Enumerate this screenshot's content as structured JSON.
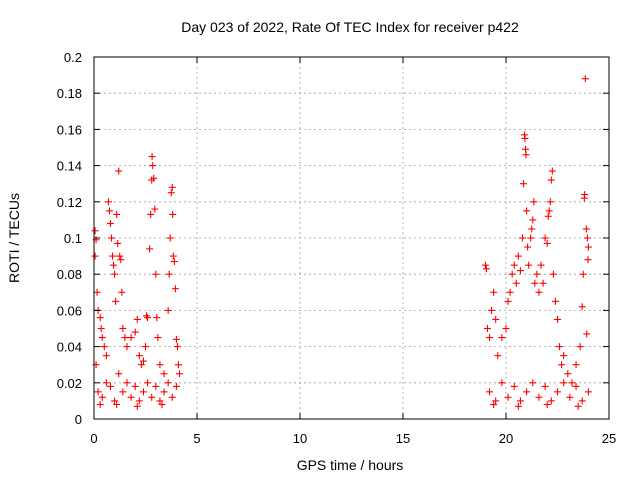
{
  "chart_data": {
    "type": "scatter",
    "title": "Day 023 of 2022, Rate Of TEC Index for receiver p422",
    "xlabel": "GPS time / hours",
    "ylabel": "ROTI / TECUs",
    "xlim": [
      0,
      25
    ],
    "ylim": [
      0,
      0.2
    ],
    "grid": true,
    "marker": "+",
    "color": "#ff0000",
    "x_ticks": [
      0,
      5,
      10,
      15,
      20,
      25
    ],
    "x_tick_labels": [
      "0",
      "5",
      "10",
      "15",
      "20",
      "25"
    ],
    "y_ticks": [
      0,
      0.02,
      0.04,
      0.06,
      0.08,
      0.1,
      0.12,
      0.14,
      0.16,
      0.18,
      0.2
    ],
    "y_tick_labels": [
      "0",
      "0.02",
      "0.04",
      "0.06",
      "0.08",
      "0.1",
      "0.12",
      "0.14",
      "0.16",
      "0.18",
      "0.2"
    ],
    "series": [
      {
        "points": [
          [
            0.05,
            0.104
          ],
          [
            0.1,
            0.099
          ],
          [
            0.05,
            0.09
          ],
          [
            0.15,
            0.07
          ],
          [
            0.2,
            0.06
          ],
          [
            0.3,
            0.056
          ],
          [
            0.35,
            0.05
          ],
          [
            0.1,
            0.03
          ],
          [
            0.4,
            0.045
          ],
          [
            0.5,
            0.04
          ],
          [
            0.6,
            0.035
          ],
          [
            0.7,
            0.12
          ],
          [
            0.75,
            0.115
          ],
          [
            0.8,
            0.108
          ],
          [
            0.85,
            0.1
          ],
          [
            0.9,
            0.09
          ],
          [
            0.95,
            0.085
          ],
          [
            1.0,
            0.08
          ],
          [
            1.05,
            0.065
          ],
          [
            1.1,
            0.113
          ],
          [
            1.15,
            0.097
          ],
          [
            1.2,
            0.137
          ],
          [
            1.25,
            0.09
          ],
          [
            1.3,
            0.088
          ],
          [
            1.35,
            0.07
          ],
          [
            1.4,
            0.05
          ],
          [
            1.5,
            0.045
          ],
          [
            1.6,
            0.04
          ],
          [
            1.8,
            0.045
          ],
          [
            2.0,
            0.048
          ],
          [
            2.1,
            0.055
          ],
          [
            2.2,
            0.035
          ],
          [
            2.3,
            0.03
          ],
          [
            2.4,
            0.032
          ],
          [
            2.5,
            0.04
          ],
          [
            2.55,
            0.057
          ],
          [
            2.6,
            0.056
          ],
          [
            2.7,
            0.094
          ],
          [
            2.75,
            0.113
          ],
          [
            2.8,
            0.132
          ],
          [
            2.82,
            0.145
          ],
          [
            2.85,
            0.14
          ],
          [
            2.9,
            0.133
          ],
          [
            2.95,
            0.116
          ],
          [
            3.0,
            0.08
          ],
          [
            3.05,
            0.056
          ],
          [
            3.1,
            0.045
          ],
          [
            3.2,
            0.03
          ],
          [
            3.4,
            0.025
          ],
          [
            3.6,
            0.06
          ],
          [
            3.65,
            0.08
          ],
          [
            3.7,
            0.1
          ],
          [
            3.75,
            0.125
          ],
          [
            3.8,
            0.128
          ],
          [
            3.82,
            0.113
          ],
          [
            3.85,
            0.09
          ],
          [
            3.9,
            0.087
          ],
          [
            3.95,
            0.072
          ],
          [
            4.0,
            0.044
          ],
          [
            4.05,
            0.04
          ],
          [
            4.1,
            0.03
          ],
          [
            4.15,
            0.025
          ],
          [
            0.2,
            0.015
          ],
          [
            0.4,
            0.012
          ],
          [
            0.6,
            0.02
          ],
          [
            0.8,
            0.018
          ],
          [
            1.0,
            0.01
          ],
          [
            1.2,
            0.025
          ],
          [
            1.4,
            0.015
          ],
          [
            1.6,
            0.02
          ],
          [
            1.8,
            0.012
          ],
          [
            2.0,
            0.018
          ],
          [
            2.2,
            0.01
          ],
          [
            2.4,
            0.015
          ],
          [
            2.6,
            0.02
          ],
          [
            2.8,
            0.012
          ],
          [
            3.0,
            0.018
          ],
          [
            3.2,
            0.01
          ],
          [
            3.4,
            0.015
          ],
          [
            3.6,
            0.02
          ],
          [
            3.8,
            0.012
          ],
          [
            4.0,
            0.018
          ],
          [
            0.3,
            0.008
          ],
          [
            1.1,
            0.008
          ],
          [
            2.1,
            0.007
          ],
          [
            3.3,
            0.008
          ],
          [
            19.0,
            0.085
          ],
          [
            19.05,
            0.083
          ],
          [
            19.1,
            0.05
          ],
          [
            19.2,
            0.045
          ],
          [
            19.3,
            0.06
          ],
          [
            19.4,
            0.07
          ],
          [
            19.5,
            0.055
          ],
          [
            19.6,
            0.035
          ],
          [
            19.8,
            0.045
          ],
          [
            20.0,
            0.05
          ],
          [
            20.1,
            0.065
          ],
          [
            20.2,
            0.07
          ],
          [
            20.3,
            0.08
          ],
          [
            20.4,
            0.085
          ],
          [
            20.5,
            0.075
          ],
          [
            20.6,
            0.09
          ],
          [
            20.7,
            0.082
          ],
          [
            20.8,
            0.1
          ],
          [
            20.85,
            0.13
          ],
          [
            20.9,
            0.157
          ],
          [
            20.92,
            0.155
          ],
          [
            20.95,
            0.149
          ],
          [
            20.97,
            0.146
          ],
          [
            21.0,
            0.115
          ],
          [
            21.05,
            0.095
          ],
          [
            21.1,
            0.085
          ],
          [
            21.2,
            0.1
          ],
          [
            21.25,
            0.105
          ],
          [
            21.3,
            0.11
          ],
          [
            21.35,
            0.12
          ],
          [
            21.4,
            0.075
          ],
          [
            21.5,
            0.08
          ],
          [
            21.6,
            0.07
          ],
          [
            21.7,
            0.085
          ],
          [
            21.8,
            0.075
          ],
          [
            21.9,
            0.1
          ],
          [
            22.0,
            0.097
          ],
          [
            22.05,
            0.112
          ],
          [
            22.1,
            0.115
          ],
          [
            22.15,
            0.12
          ],
          [
            22.2,
            0.132
          ],
          [
            22.25,
            0.137
          ],
          [
            22.3,
            0.08
          ],
          [
            22.4,
            0.065
          ],
          [
            22.5,
            0.055
          ],
          [
            22.6,
            0.04
          ],
          [
            22.7,
            0.03
          ],
          [
            22.8,
            0.035
          ],
          [
            23.0,
            0.025
          ],
          [
            23.2,
            0.02
          ],
          [
            23.4,
            0.03
          ],
          [
            23.6,
            0.04
          ],
          [
            23.7,
            0.062
          ],
          [
            23.75,
            0.08
          ],
          [
            23.8,
            0.122
          ],
          [
            23.82,
            0.124
          ],
          [
            23.85,
            0.188
          ],
          [
            23.9,
            0.105
          ],
          [
            23.95,
            0.1
          ],
          [
            24.0,
            0.095
          ],
          [
            23.98,
            0.088
          ],
          [
            23.92,
            0.047
          ],
          [
            19.2,
            0.015
          ],
          [
            19.5,
            0.01
          ],
          [
            19.8,
            0.02
          ],
          [
            20.1,
            0.012
          ],
          [
            20.4,
            0.018
          ],
          [
            20.7,
            0.01
          ],
          [
            21.0,
            0.015
          ],
          [
            21.3,
            0.02
          ],
          [
            21.6,
            0.012
          ],
          [
            21.9,
            0.018
          ],
          [
            22.2,
            0.01
          ],
          [
            22.5,
            0.015
          ],
          [
            22.8,
            0.02
          ],
          [
            23.1,
            0.012
          ],
          [
            23.4,
            0.018
          ],
          [
            23.7,
            0.01
          ],
          [
            24.0,
            0.015
          ],
          [
            19.4,
            0.008
          ],
          [
            20.6,
            0.007
          ],
          [
            22.0,
            0.008
          ],
          [
            23.5,
            0.007
          ]
        ]
      }
    ]
  }
}
